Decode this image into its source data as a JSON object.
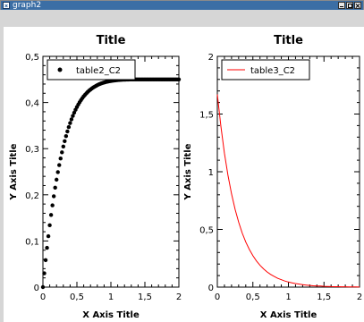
{
  "window": {
    "title": "graph2",
    "tabs": [
      "1",
      "2"
    ]
  },
  "chart_data": [
    {
      "type": "scatter",
      "title": "Title",
      "xlabel": "X Axis Title",
      "ylabel": "Y Axis Title",
      "xlim": [
        0,
        2
      ],
      "ylim": [
        0,
        0.5
      ],
      "xticks": [
        0,
        0.5,
        1,
        1.5,
        2
      ],
      "xticklabels": [
        "0",
        "0,5",
        "1",
        "1,5",
        "2"
      ],
      "yticks": [
        0,
        0.1,
        0.2,
        0.3,
        0.4,
        0.5
      ],
      "yticklabels": [
        "0",
        "0,1",
        "0,2",
        "0,3",
        "0,4",
        "0,5"
      ],
      "legend": "top-left",
      "grid": false,
      "color": "#000000",
      "series": [
        {
          "name": "table2_C2",
          "x": [
            0,
            0.02,
            0.04,
            0.06,
            0.08,
            0.1,
            0.12,
            0.14,
            0.16,
            0.18,
            0.2,
            0.22,
            0.24,
            0.26,
            0.28,
            0.3,
            0.32,
            0.34,
            0.36,
            0.38,
            0.4,
            0.42,
            0.44,
            0.46,
            0.48,
            0.5,
            0.52,
            0.54,
            0.56,
            0.58,
            0.6,
            0.62,
            0.64,
            0.66,
            0.68,
            0.7,
            0.72,
            0.74,
            0.76,
            0.78,
            0.8,
            0.82,
            0.84,
            0.86,
            0.88,
            0.9,
            0.92,
            0.94,
            0.96,
            0.98,
            1,
            1.02,
            1.04,
            1.06,
            1.08,
            1.1,
            1.12,
            1.14,
            1.16,
            1.18,
            1.2,
            1.22,
            1.24,
            1.26,
            1.28,
            1.3,
            1.32,
            1.34,
            1.36,
            1.38,
            1.4,
            1.42,
            1.44,
            1.46,
            1.48,
            1.5,
            1.52,
            1.54,
            1.56,
            1.58,
            1.6,
            1.62,
            1.64,
            1.66,
            1.68,
            1.7,
            1.72,
            1.74,
            1.76,
            1.78,
            1.8,
            1.82,
            1.84,
            1.86,
            1.88,
            1.9,
            1.92,
            1.94,
            1.96,
            1.98,
            2
          ],
          "y": [
            0,
            0.03,
            0.0584,
            0.0851,
            0.1103,
            0.134,
            0.1563,
            0.1772,
            0.1969,
            0.2154,
            0.2328,
            0.2491,
            0.2644,
            0.2787,
            0.2921,
            0.3046,
            0.3163,
            0.3272,
            0.3373,
            0.3467,
            0.3554,
            0.3635,
            0.371,
            0.3779,
            0.3843,
            0.3902,
            0.3956,
            0.4006,
            0.4052,
            0.4094,
            0.4133,
            0.4168,
            0.42,
            0.423,
            0.4257,
            0.4282,
            0.4304,
            0.4325,
            0.4343,
            0.436,
            0.4376,
            0.439,
            0.4402,
            0.4414,
            0.4424,
            0.4433,
            0.4441,
            0.4449,
            0.4455,
            0.4461,
            0.4466,
            0.4471,
            0.4475,
            0.4479,
            0.4482,
            0.4485,
            0.4488,
            0.449,
            0.4492,
            0.4494,
            0.4495,
            0.4496,
            0.4497,
            0.4498,
            0.4499,
            0.45,
            0.45,
            0.45,
            0.45,
            0.45,
            0.45,
            0.45,
            0.45,
            0.45,
            0.45,
            0.45,
            0.45,
            0.45,
            0.45,
            0.45,
            0.45,
            0.45,
            0.45,
            0.45,
            0.45,
            0.45,
            0.45,
            0.45,
            0.45,
            0.45,
            0.45,
            0.45,
            0.45,
            0.45,
            0.45,
            0.45,
            0.45,
            0.45,
            0.45,
            0.45,
            0.45
          ]
        }
      ]
    },
    {
      "type": "line",
      "title": "Title",
      "xlabel": "X Axis Title",
      "ylabel": "Y Axis Title",
      "xlim": [
        0,
        2
      ],
      "ylim": [
        0,
        2
      ],
      "xticks": [
        0,
        0.5,
        1,
        1.5,
        2
      ],
      "xticklabels": [
        "0",
        "0,5",
        "1",
        "1,5",
        "2"
      ],
      "yticks": [
        0,
        0.5,
        1,
        1.5,
        2
      ],
      "yticklabels": [
        "0",
        "0,5",
        "1",
        "1,5",
        "2"
      ],
      "legend": "top-left",
      "grid": false,
      "color": "#ff0000",
      "series": [
        {
          "name": "table3_C2",
          "x": [
            0,
            0.05,
            0.1,
            0.15,
            0.2,
            0.25,
            0.3,
            0.35,
            0.4,
            0.45,
            0.5,
            0.55,
            0.6,
            0.65,
            0.7,
            0.75,
            0.8,
            0.85,
            0.9,
            0.95,
            1,
            1.05,
            1.1,
            1.15,
            1.2,
            1.25,
            1.3,
            1.35,
            1.4,
            1.45,
            1.5,
            1.55,
            1.6,
            1.65,
            1.7,
            1.75,
            1.8,
            1.85,
            1.9,
            1.95,
            2
          ],
          "y": [
            1.67,
            1.393,
            1.162,
            0.969,
            0.808,
            0.674,
            0.562,
            0.469,
            0.391,
            0.326,
            0.272,
            0.227,
            0.189,
            0.158,
            0.132,
            0.11,
            0.092,
            0.076,
            0.064,
            0.053,
            0.044,
            0.037,
            0.031,
            0.026,
            0.021,
            0.018,
            0.015,
            0.012,
            0.01,
            0.009,
            0.007,
            0.006,
            0.005,
            0.004,
            0.004,
            0.003,
            0.003,
            0.002,
            0.002,
            0.002,
            0.001
          ]
        }
      ]
    }
  ]
}
